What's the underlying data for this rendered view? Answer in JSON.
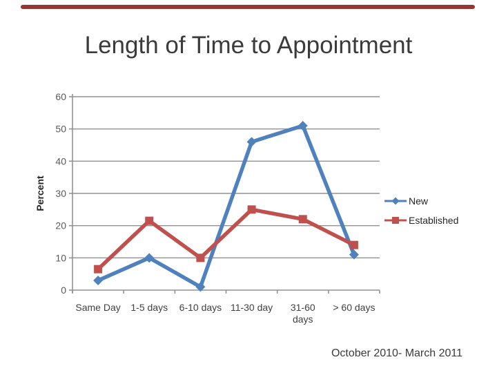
{
  "slide": {
    "title": "Length of Time to Appointment",
    "footer": "October 2010- March 2011",
    "accent_bar_color": "#943634",
    "background_color": "#ffffff"
  },
  "chart_data": {
    "type": "line",
    "title": "",
    "xlabel": "",
    "ylabel": "Percent",
    "categories": [
      "Same Day",
      "1-5 days",
      "6-10 days",
      "11-30 day",
      "31-60 days",
      "> 60 days"
    ],
    "x_tick_labels": [
      "Same Day",
      "1-5 days",
      "6-10 days",
      "11-30 day",
      "31-60\ndays",
      "> 60 days"
    ],
    "series": [
      {
        "name": "New",
        "marker": "diamond",
        "color": "#4f81bd",
        "values": [
          3,
          10,
          1,
          46,
          51,
          11
        ]
      },
      {
        "name": "Established",
        "marker": "square",
        "color": "#c0504d",
        "values": [
          6.5,
          21.5,
          10,
          25,
          22,
          14
        ]
      }
    ],
    "ylim": [
      0,
      60
    ],
    "yticks": [
      0,
      10,
      20,
      30,
      40,
      50,
      60
    ],
    "grid": true,
    "gridline_color": "#919191",
    "axis_color": "#919191",
    "legend_position": "right"
  }
}
